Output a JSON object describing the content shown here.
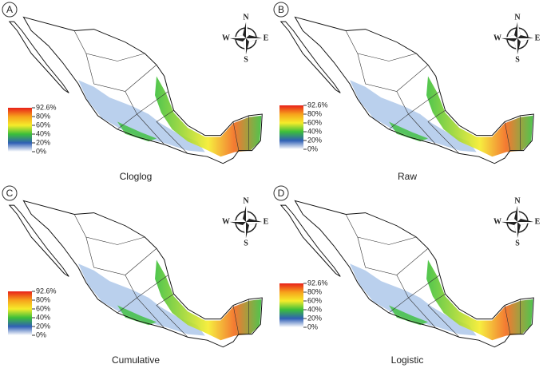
{
  "panels": [
    {
      "label": "A",
      "caption": "Cloglog"
    },
    {
      "label": "B",
      "caption": "Raw"
    },
    {
      "label": "C",
      "caption": "Cumulative"
    },
    {
      "label": "D",
      "caption": "Logistic"
    }
  ],
  "legend": {
    "labels": [
      "92.6%",
      "80%",
      "60%",
      "40%",
      "20%",
      "0%"
    ]
  },
  "compass": {
    "north": "N",
    "east": "E",
    "south": "S",
    "west": "W"
  }
}
